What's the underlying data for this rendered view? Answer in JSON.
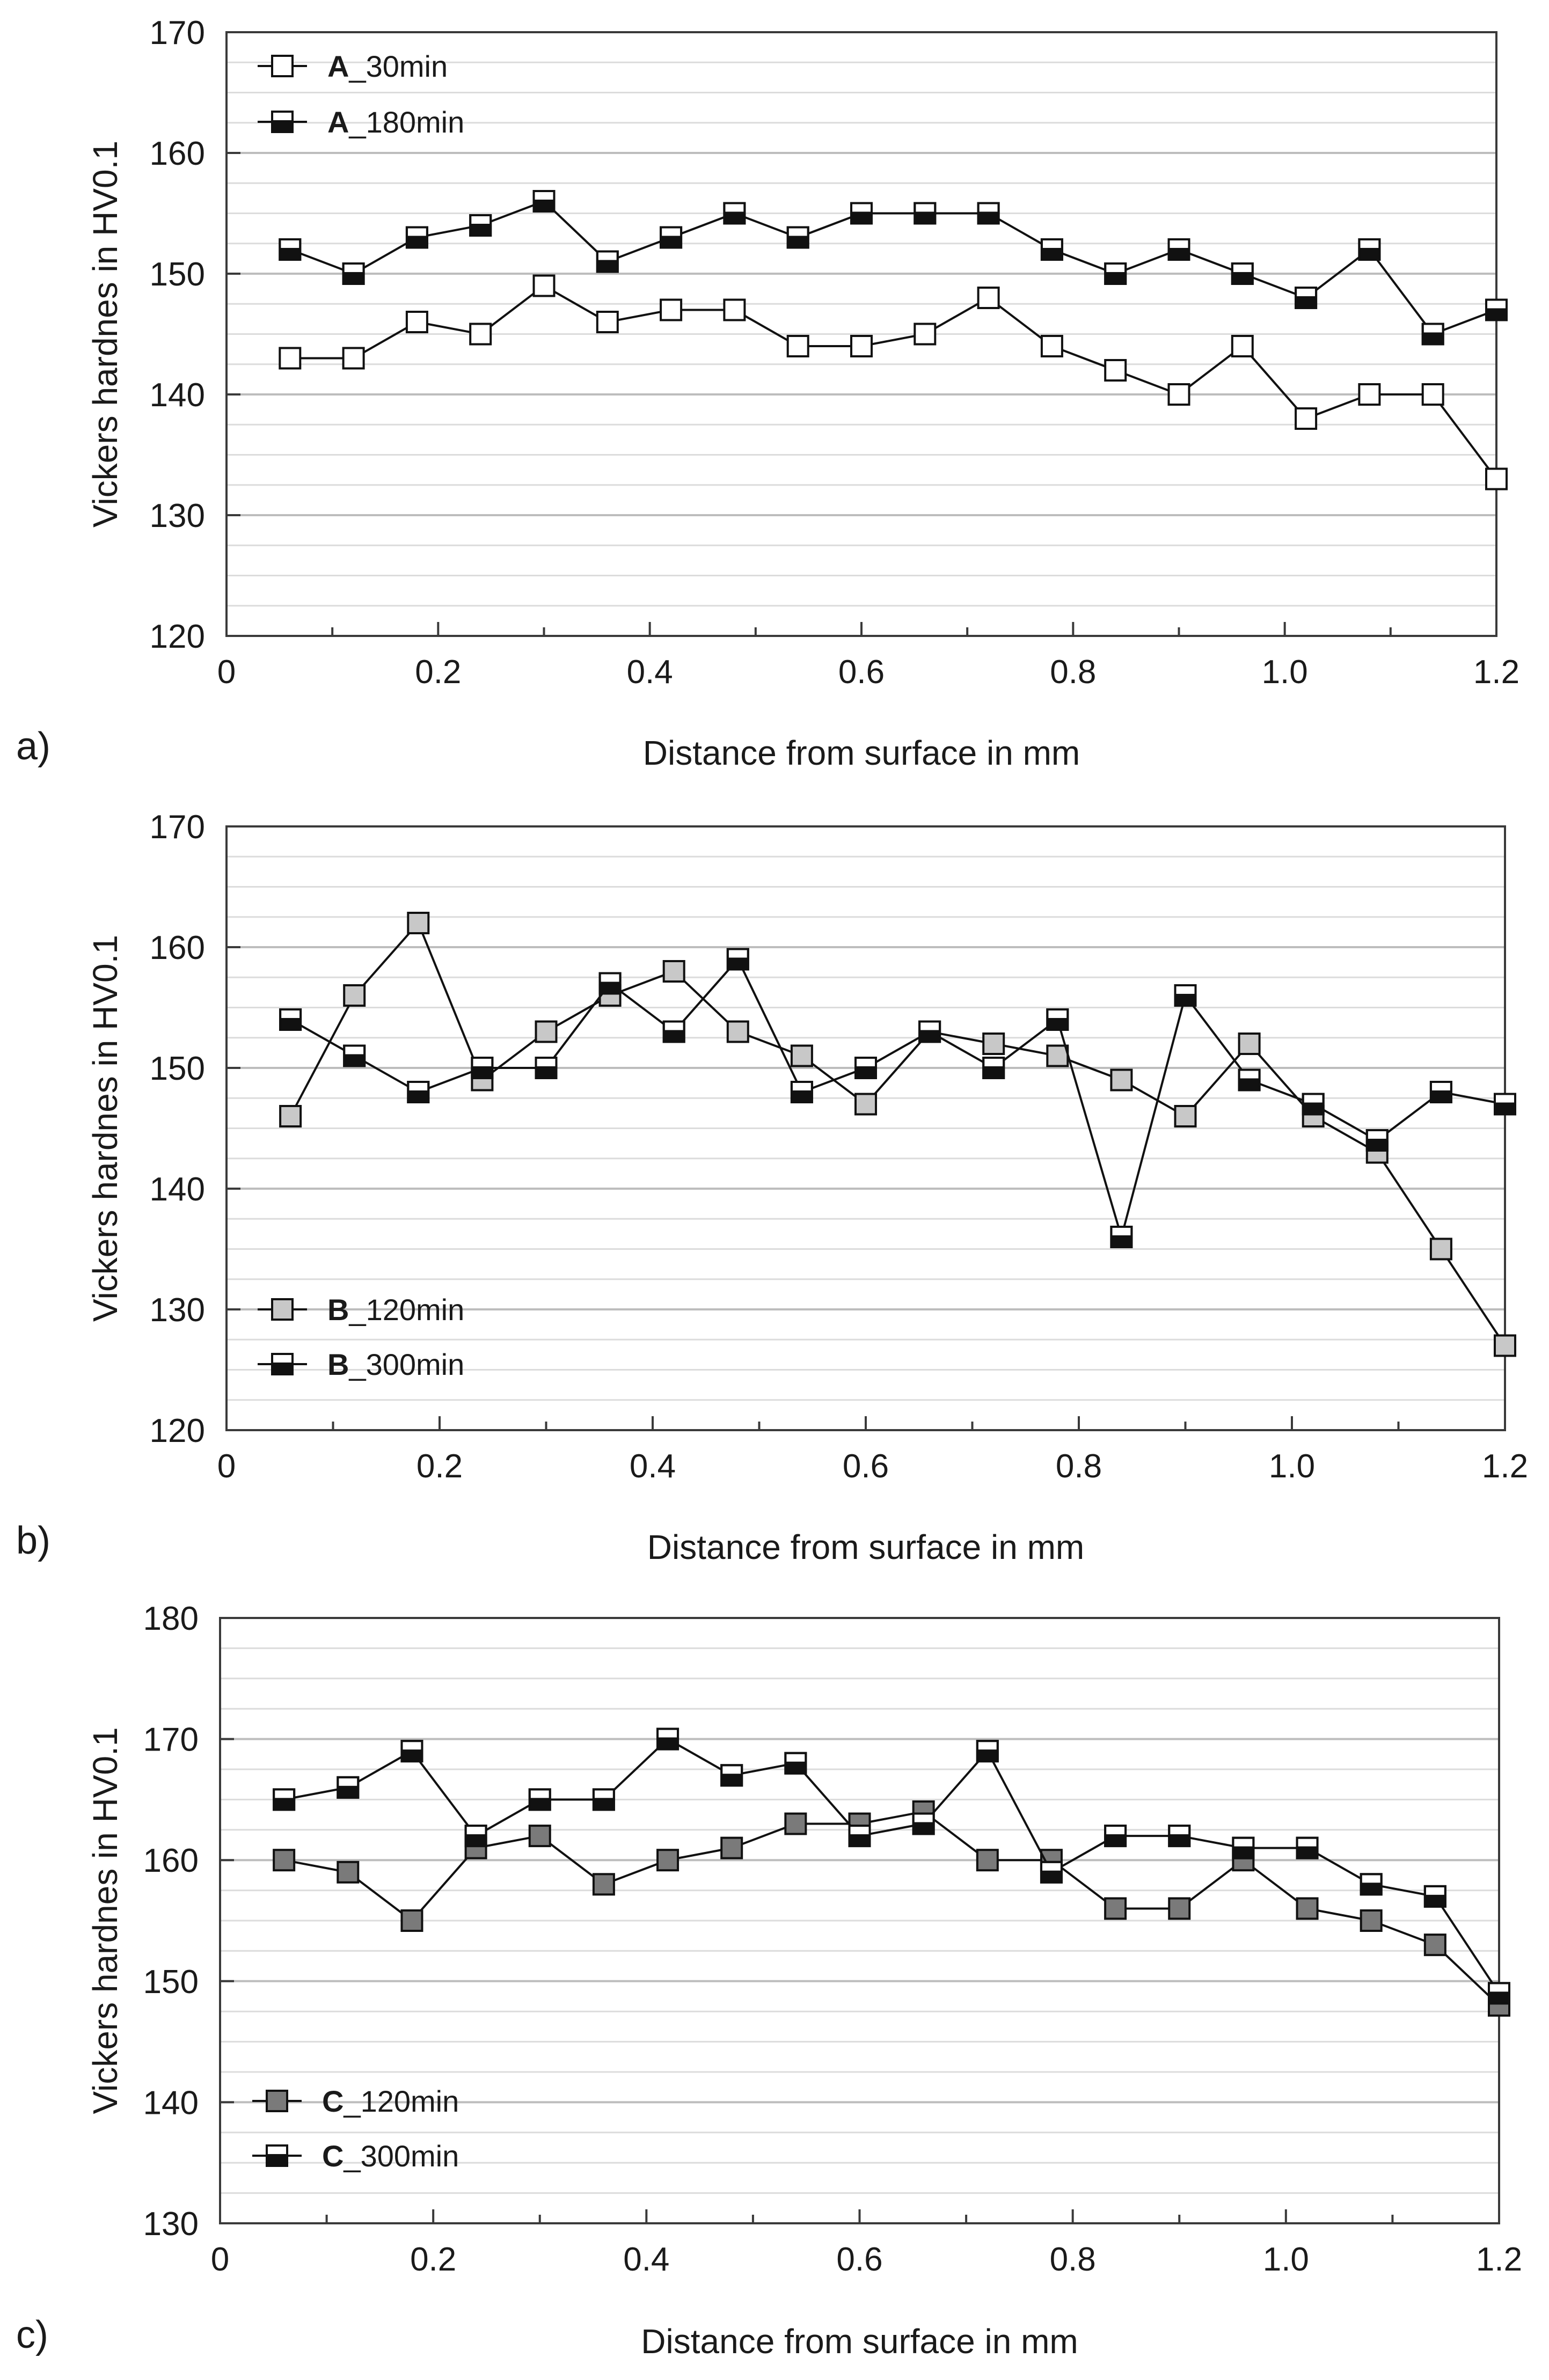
{
  "chart_data": [
    {
      "type": "line",
      "panel_label": "a)",
      "xlabel": "Distance from surface in mm",
      "ylabel": "Vickers hardnes in HV0.1",
      "xlim": [
        0,
        1.2
      ],
      "ylim": [
        120,
        170
      ],
      "x_ticks": [
        "0",
        "0.2",
        "0.4",
        "0.6",
        "0.8",
        "1.0",
        "1.2"
      ],
      "y_ticks": [
        "120",
        "130",
        "140",
        "150",
        "160",
        "170"
      ],
      "y_tick_values": [
        120,
        130,
        140,
        150,
        160,
        170
      ],
      "grid_step": 2.5,
      "legend_position": "top-left",
      "x": [
        0.06,
        0.12,
        0.18,
        0.24,
        0.3,
        0.36,
        0.42,
        0.48,
        0.54,
        0.6,
        0.66,
        0.72,
        0.78,
        0.84,
        0.9,
        0.96,
        1.02,
        1.08,
        1.14,
        1.2
      ],
      "series": [
        {
          "name_bold": "A",
          "name_rest": "_30min",
          "marker": "open-square",
          "fill": "#ffffff",
          "values": [
            143,
            143,
            146,
            145,
            149,
            146,
            147,
            147,
            144,
            144,
            145,
            148,
            144,
            142,
            140,
            144,
            138,
            140,
            140,
            133
          ]
        },
        {
          "name_bold": "A",
          "name_rest": "_180min",
          "marker": "half-filled-square",
          "fill": "#111111",
          "values": [
            152,
            150,
            153,
            154,
            156,
            151,
            153,
            155,
            153,
            155,
            155,
            155,
            152,
            150,
            152,
            150,
            148,
            152,
            145,
            147
          ]
        }
      ]
    },
    {
      "type": "line",
      "panel_label": "b)",
      "xlabel": "Distance from surface in mm",
      "ylabel": "Vickers hardnes in HV0.1",
      "xlim": [
        0,
        1.2
      ],
      "ylim": [
        120,
        170
      ],
      "x_ticks": [
        "0",
        "0.2",
        "0.4",
        "0.6",
        "0.8",
        "1.0",
        "1.2"
      ],
      "y_ticks": [
        "120",
        "130",
        "140",
        "150",
        "160",
        "170"
      ],
      "y_tick_values": [
        120,
        130,
        140,
        150,
        160,
        170
      ],
      "grid_step": 2.5,
      "legend_position": "bottom-left",
      "x": [
        0.06,
        0.12,
        0.18,
        0.24,
        0.3,
        0.36,
        0.42,
        0.48,
        0.54,
        0.6,
        0.66,
        0.72,
        0.78,
        0.84,
        0.9,
        0.96,
        1.02,
        1.08,
        1.14,
        1.2
      ],
      "series": [
        {
          "name_bold": "B",
          "name_rest": "_120min",
          "marker": "light-gray-square",
          "fill": "#c8c8c8",
          "values": [
            146,
            156,
            162,
            149,
            153,
            156,
            158,
            153,
            151,
            147,
            153,
            152,
            151,
            149,
            146,
            152,
            146,
            143,
            135,
            127
          ]
        },
        {
          "name_bold": "B",
          "name_rest": "_300min",
          "marker": "half-filled-square",
          "fill": "#111111",
          "values": [
            154,
            151,
            148,
            150,
            150,
            157,
            153,
            159,
            148,
            150,
            153,
            150,
            154,
            136,
            156,
            149,
            147,
            144,
            148,
            147
          ]
        }
      ]
    },
    {
      "type": "line",
      "panel_label": "c)",
      "xlabel": "Distance from surface in mm",
      "ylabel": "Vickers hardnes in HV0.1",
      "xlim": [
        0,
        1.2
      ],
      "ylim": [
        130,
        180
      ],
      "x_ticks": [
        "0",
        "0.2",
        "0.4",
        "0.6",
        "0.8",
        "1.0",
        "1.2"
      ],
      "y_ticks": [
        "130",
        "140",
        "150",
        "160",
        "170",
        "180"
      ],
      "y_tick_values": [
        130,
        140,
        150,
        160,
        170,
        180
      ],
      "grid_step": 2.5,
      "legend_position": "bottom-left",
      "x": [
        0.06,
        0.12,
        0.18,
        0.24,
        0.3,
        0.36,
        0.42,
        0.48,
        0.54,
        0.6,
        0.66,
        0.72,
        0.78,
        0.84,
        0.9,
        0.96,
        1.02,
        1.08,
        1.14,
        1.2
      ],
      "series": [
        {
          "name_bold": "C",
          "name_rest": "_120min",
          "marker": "dark-gray-square",
          "fill": "#7a7a7a",
          "values": [
            160,
            159,
            155,
            161,
            162,
            158,
            160,
            161,
            163,
            163,
            164,
            160,
            160,
            156,
            156,
            160,
            156,
            155,
            153,
            148
          ]
        },
        {
          "name_bold": "C",
          "name_rest": "_300min",
          "marker": "half-filled-square",
          "fill": "#111111",
          "values": [
            165,
            166,
            169,
            162,
            165,
            165,
            170,
            167,
            168,
            162,
            163,
            169,
            159,
            162,
            162,
            161,
            161,
            158,
            157,
            149
          ]
        }
      ]
    }
  ]
}
